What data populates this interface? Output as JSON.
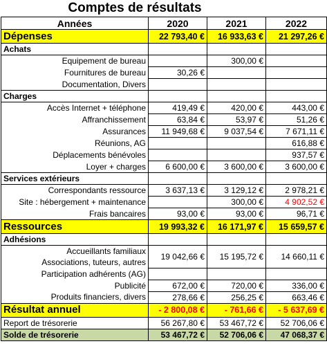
{
  "header": {
    "title": "Comptes de résultats"
  },
  "table": {
    "columns": [
      "Années",
      "2020",
      "2021",
      "2022"
    ],
    "rows": [
      {
        "kind": "total",
        "label": "Dépenses",
        "values": [
          "22 793,40 €",
          "16 933,63 €",
          "21 297,26 €"
        ]
      },
      {
        "kind": "section",
        "label": "Achats",
        "values": [
          null,
          null,
          null
        ]
      },
      {
        "kind": "item",
        "label": "Equipement de bureau",
        "values": [
          null,
          "300,00 €",
          null
        ]
      },
      {
        "kind": "item",
        "label": "Fournitures de bureau",
        "values": [
          "30,26 €",
          null,
          null
        ]
      },
      {
        "kind": "item",
        "label": "Documentation, Divers",
        "values": [
          null,
          null,
          null
        ]
      },
      {
        "kind": "section",
        "label": "Charges",
        "values": [
          null,
          null,
          null
        ]
      },
      {
        "kind": "item",
        "label": "Accès Internet + téléphone",
        "values": [
          "419,49 €",
          "420,00 €",
          "443,00 €"
        ]
      },
      {
        "kind": "item",
        "label": "Affranchissement",
        "values": [
          "63,84 €",
          "53,97 €",
          "51,26 €"
        ]
      },
      {
        "kind": "item",
        "label": "Assurances",
        "values": [
          "11 949,68 €",
          "9 037,54 €",
          "7 671,11 €"
        ]
      },
      {
        "kind": "item",
        "label": "Réunions, AG",
        "values": [
          null,
          null,
          "616,88 €"
        ]
      },
      {
        "kind": "item",
        "label": "Déplacements bénévoles",
        "values": [
          null,
          null,
          "937,57 €"
        ]
      },
      {
        "kind": "item",
        "label": "Loyer + charges",
        "values": [
          "6 600,00 €",
          "3 600,00 €",
          "3 600,00 €"
        ]
      },
      {
        "kind": "section",
        "label": "Services extérieurs",
        "values": [
          null,
          null,
          null
        ]
      },
      {
        "kind": "item",
        "label": "Correspondants ressource",
        "values": [
          "3 637,13 €",
          "3 129,12 €",
          "2 978,21 €"
        ]
      },
      {
        "kind": "item",
        "label": "Site : hébergement + maintenance",
        "values": [
          null,
          "300,00 €",
          "4 902,52 €"
        ],
        "value_colors": [
          null,
          null,
          "#ff0000"
        ]
      },
      {
        "kind": "item",
        "label": "Frais bancaires",
        "values": [
          "93,00 €",
          "93,00 €",
          "96,71 €"
        ]
      },
      {
        "kind": "total",
        "label": "Ressources",
        "values": [
          "19 993,32 €",
          "16 171,97 €",
          "15 659,57 €"
        ]
      },
      {
        "kind": "section",
        "label": "Adhésions",
        "values": [
          null,
          null,
          null
        ]
      },
      {
        "kind": "merged",
        "labels": [
          "Accueillants familiaux",
          "Associations, tuteurs, autres"
        ],
        "values": [
          "19 042,66 €",
          "15 195,72 €",
          "14 660,11 €"
        ]
      },
      {
        "kind": "item",
        "label": "Participation adhérents (AG)",
        "values": [
          null,
          null,
          null
        ]
      },
      {
        "kind": "item",
        "label": "Publicité",
        "values": [
          "672,00 €",
          "720,00 €",
          "336,00 €"
        ]
      },
      {
        "kind": "item",
        "label": "Produits financiers, divers",
        "values": [
          "278,66 €",
          "256,25 €",
          "663,46 €"
        ]
      },
      {
        "kind": "total",
        "label": "Résultat annuel",
        "values": [
          "- 2 800,08 €",
          "- 761,66 €",
          "- 5 637,69 €"
        ],
        "value_colors": [
          "#ff0000",
          "#ff0000",
          "#ff0000"
        ]
      },
      {
        "kind": "plain",
        "label": "Report de trésorerie",
        "values": [
          "56 267,80 €",
          "53 467,72 €",
          "52 706,06 €"
        ]
      },
      {
        "kind": "balance",
        "label": "Solde de trésorerie",
        "values": [
          "53 467,72 €",
          "52 706,06 €",
          "47 068,37 €"
        ]
      }
    ]
  }
}
